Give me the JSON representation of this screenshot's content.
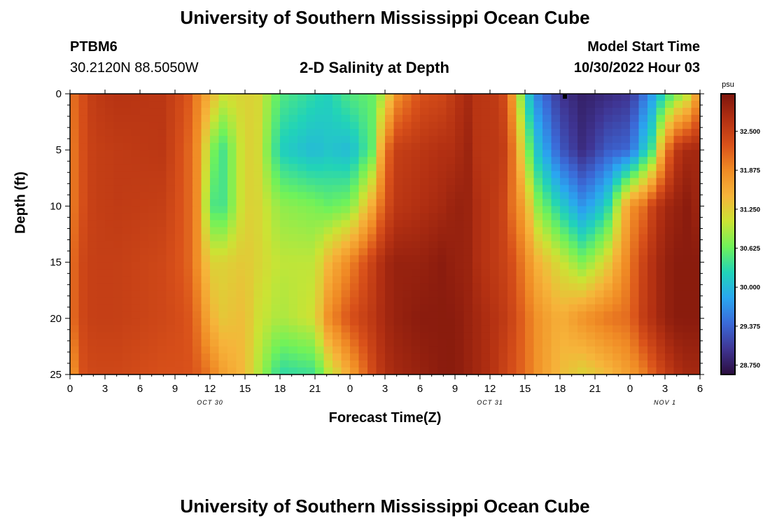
{
  "header": {
    "title": "University of Southern Mississippi Ocean Cube",
    "station": "PTBM6",
    "coords": "30.2120N  88.5050W",
    "plot_title": "2-D Salinity at Depth",
    "model_start_label": "Model Start Time",
    "model_start_value": "10/30/2022 Hour 03"
  },
  "footer": {
    "title": "University of Southern Mississippi Ocean Cube"
  },
  "colors": {
    "stops": [
      "#2b0d3e",
      "#3f3593",
      "#3b6ad8",
      "#2aa6f0",
      "#21d3b8",
      "#6ff25a",
      "#cbe334",
      "#f6b43a",
      "#f08b25",
      "#d9511a",
      "#b33012",
      "#7d150c"
    ]
  },
  "chart_data": {
    "type": "heatmap",
    "title": "2-D Salinity at Depth",
    "xlabel": "Forecast Time(Z)",
    "ylabel": "Depth (ft)",
    "x_ticks": [
      "0",
      "3",
      "6",
      "9",
      "12",
      "15",
      "18",
      "21",
      "0",
      "3",
      "6",
      "9",
      "12",
      "15",
      "18",
      "21",
      "0",
      "3",
      "6"
    ],
    "x_hours": [
      0,
      3,
      6,
      9,
      12,
      15,
      18,
      21,
      24,
      27,
      30,
      33,
      36,
      39,
      42,
      45,
      48,
      51,
      54
    ],
    "xlim": [
      0,
      54
    ],
    "date_labels": [
      {
        "text": "OCT 30",
        "hour": 12
      },
      {
        "text": "OCT 31",
        "hour": 36
      },
      {
        "text": "NOV 1",
        "hour": 51
      }
    ],
    "y_ticks": [
      0,
      5,
      10,
      15,
      20,
      25
    ],
    "ylim": [
      0,
      25
    ],
    "colorbar": {
      "unit": "psu",
      "range": [
        28.6,
        33.1
      ],
      "ticks": [
        32.5,
        31.875,
        31.25,
        30.625,
        30.0,
        29.375,
        28.75
      ],
      "tick_labels": [
        "32.500",
        "31.875",
        "31.250",
        "30.625",
        "30.000",
        "29.375",
        "28.750"
      ]
    },
    "salinity_psu": {
      "hours": [
        0,
        1,
        2,
        4,
        8,
        10,
        11,
        12,
        13,
        15,
        16,
        18,
        21,
        22,
        24,
        26,
        27,
        28,
        30,
        32,
        33,
        34,
        35,
        36,
        37,
        38,
        39,
        40,
        42,
        44,
        46,
        48,
        49,
        50,
        51,
        52,
        53,
        54
      ],
      "depths_ft": [
        0,
        5,
        10,
        15,
        20,
        25
      ],
      "rows": [
        [
          32.0,
          32.3,
          32.55,
          32.65,
          32.6,
          32.3,
          31.9,
          31.5,
          31.1,
          31.2,
          31.2,
          30.5,
          30.3,
          30.2,
          30.5,
          30.6,
          31.0,
          31.8,
          32.3,
          32.4,
          32.6,
          32.8,
          32.6,
          32.6,
          32.5,
          31.7,
          30.3,
          29.6,
          29.0,
          28.8,
          28.9,
          29.0,
          29.4,
          29.8,
          30.3,
          30.7,
          31.0,
          31.9
        ],
        [
          31.9,
          32.3,
          32.5,
          32.55,
          32.6,
          32.2,
          31.8,
          30.8,
          30.4,
          31.2,
          31.2,
          30.2,
          30.0,
          30.1,
          30.0,
          30.6,
          32.0,
          32.5,
          32.6,
          32.7,
          32.7,
          32.9,
          32.6,
          32.6,
          32.6,
          32.0,
          30.9,
          30.1,
          29.3,
          28.9,
          29.3,
          29.4,
          30.0,
          30.5,
          31.9,
          32.6,
          32.8,
          32.8
        ],
        [
          31.9,
          32.3,
          32.5,
          32.55,
          32.5,
          32.2,
          31.8,
          30.5,
          30.4,
          31.2,
          31.2,
          30.8,
          30.7,
          30.6,
          30.7,
          31.6,
          32.3,
          32.6,
          32.7,
          32.8,
          32.9,
          32.9,
          32.7,
          32.6,
          32.5,
          32.0,
          31.6,
          30.8,
          30.2,
          29.7,
          30.2,
          31.8,
          32.0,
          32.5,
          32.8,
          32.9,
          33.0,
          32.8
        ],
        [
          32.0,
          32.4,
          32.5,
          32.5,
          32.4,
          32.2,
          31.8,
          31.2,
          31.2,
          31.3,
          31.2,
          31.0,
          31.0,
          31.4,
          31.9,
          32.5,
          32.8,
          32.9,
          32.9,
          33.0,
          32.9,
          32.9,
          32.7,
          32.6,
          32.5,
          32.3,
          31.9,
          31.5,
          31.1,
          30.7,
          31.2,
          32.0,
          32.4,
          32.7,
          32.9,
          33.0,
          33.0,
          33.0
        ],
        [
          32.0,
          32.4,
          32.5,
          32.5,
          32.4,
          32.3,
          32.0,
          31.5,
          31.3,
          31.4,
          31.1,
          30.9,
          31.1,
          31.8,
          32.3,
          32.6,
          32.8,
          32.9,
          33.0,
          33.0,
          33.0,
          32.9,
          32.8,
          32.7,
          32.6,
          32.4,
          32.1,
          31.8,
          31.5,
          31.8,
          32.0,
          32.1,
          32.5,
          32.7,
          32.9,
          33.0,
          33.0,
          33.0
        ],
        [
          31.6,
          32.3,
          32.4,
          32.4,
          32.3,
          32.3,
          32.2,
          32.0,
          31.7,
          31.4,
          31.0,
          30.3,
          30.4,
          30.9,
          31.6,
          32.4,
          32.7,
          32.8,
          32.9,
          33.0,
          33.0,
          32.9,
          32.8,
          32.7,
          32.5,
          32.3,
          32.1,
          31.8,
          31.4,
          31.2,
          31.4,
          31.7,
          31.9,
          32.2,
          32.5,
          32.7,
          32.8,
          32.8
        ]
      ]
    }
  }
}
